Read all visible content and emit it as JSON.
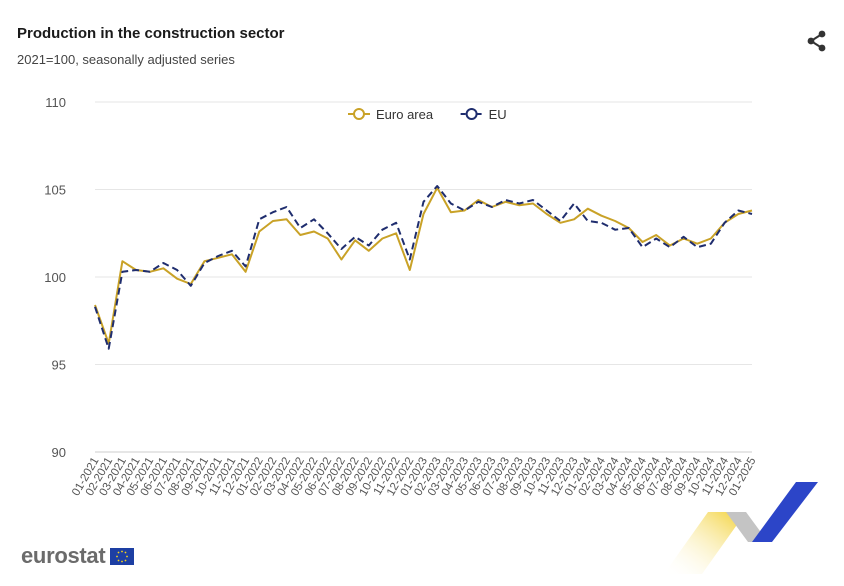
{
  "header": {
    "title": "Production in the construction sector",
    "subtitle": "2021=100, seasonally adjusted series"
  },
  "branding": {
    "logo_text": "eurostat"
  },
  "icons": {
    "share": "share-icon",
    "flag": "eu-flag-icon"
  },
  "colors": {
    "euro_area": "#c9a227",
    "eu": "#1f2d6e",
    "grid": "#e6e6e6",
    "deco_yellow": "#f2cf2e",
    "deco_blue": "#2c45c8",
    "deco_grey": "#bdbdbd"
  },
  "chart_data": {
    "type": "line",
    "title": "Production in the construction sector",
    "subtitle": "2021=100, seasonally adjusted series",
    "xlabel": "",
    "ylabel": "",
    "ylim": [
      90,
      110
    ],
    "yticks": [
      90,
      95,
      100,
      105,
      110
    ],
    "grid": true,
    "legend": "top-center",
    "x": [
      "01-2021",
      "02-2021",
      "03-2021",
      "04-2021",
      "05-2021",
      "06-2021",
      "07-2021",
      "08-2021",
      "09-2021",
      "10-2021",
      "11-2021",
      "12-2021",
      "01-2022",
      "02-2022",
      "03-2022",
      "04-2022",
      "05-2022",
      "06-2022",
      "07-2022",
      "08-2022",
      "09-2022",
      "10-2022",
      "11-2022",
      "12-2022",
      "01-2023",
      "02-2023",
      "03-2023",
      "04-2023",
      "05-2023",
      "06-2023",
      "07-2023",
      "08-2023",
      "09-2023",
      "10-2023",
      "11-2023",
      "12-2023",
      "01-2024",
      "02-2024",
      "03-2024",
      "04-2024",
      "05-2024",
      "06-2024",
      "07-2024",
      "08-2024",
      "09-2024",
      "10-2024",
      "11-2024",
      "12-2024",
      "01-2025"
    ],
    "series": [
      {
        "name": "Euro area",
        "color": "#c9a227",
        "style": "solid",
        "values": [
          98.4,
          96.2,
          100.9,
          100.4,
          100.3,
          100.5,
          99.9,
          99.6,
          100.9,
          101.1,
          101.3,
          100.3,
          102.6,
          103.2,
          103.3,
          102.4,
          102.6,
          102.2,
          101.0,
          102.1,
          101.5,
          102.2,
          102.5,
          100.4,
          103.6,
          105.1,
          103.7,
          103.8,
          104.4,
          104.0,
          104.3,
          104.1,
          104.2,
          103.6,
          103.1,
          103.3,
          103.9,
          103.5,
          103.2,
          102.8,
          102.0,
          102.4,
          101.8,
          102.2,
          101.9,
          102.2,
          103.1,
          103.6,
          103.8
        ]
      },
      {
        "name": "EU",
        "color": "#1f2d6e",
        "style": "dashed",
        "values": [
          98.3,
          95.9,
          100.3,
          100.4,
          100.3,
          100.8,
          100.4,
          99.5,
          100.8,
          101.2,
          101.5,
          100.6,
          103.3,
          103.7,
          104.0,
          102.8,
          103.3,
          102.5,
          101.6,
          102.3,
          101.8,
          102.7,
          103.1,
          101.0,
          104.3,
          105.2,
          104.2,
          103.8,
          104.3,
          104.0,
          104.4,
          104.2,
          104.4,
          103.8,
          103.2,
          104.2,
          103.2,
          103.1,
          102.7,
          102.8,
          101.7,
          102.2,
          101.7,
          102.3,
          101.7,
          101.9,
          103.1,
          103.8,
          103.6
        ]
      }
    ]
  }
}
